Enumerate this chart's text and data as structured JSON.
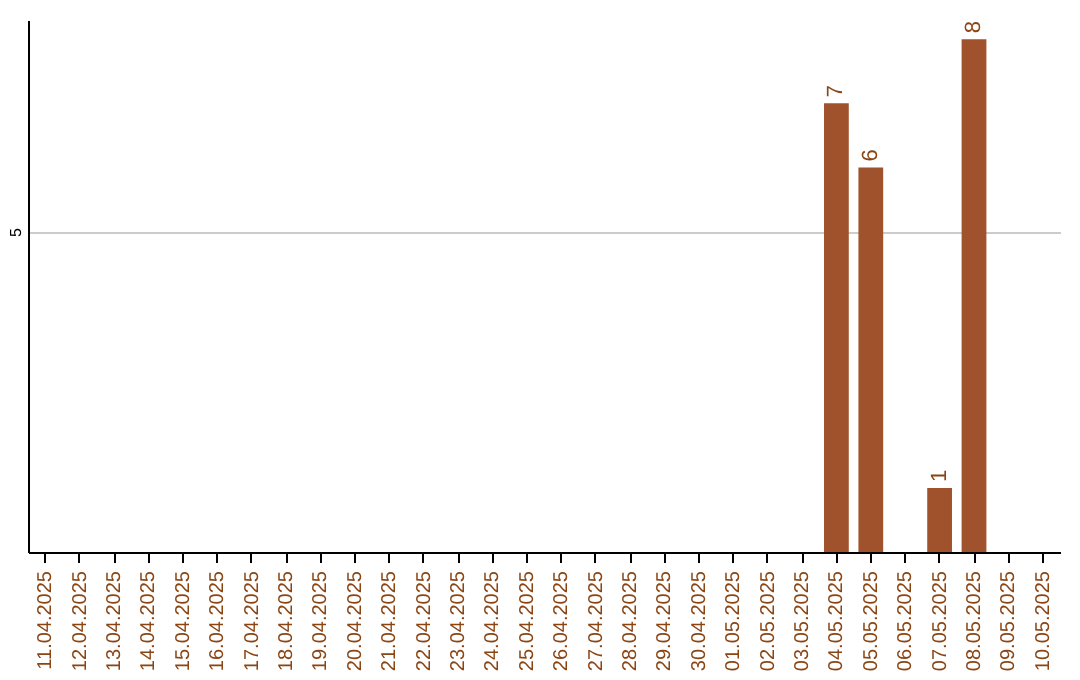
{
  "chart_data": {
    "type": "bar",
    "categories": [
      "11.04.2025",
      "12.04.2025",
      "13.04.2025",
      "14.04.2025",
      "15.04.2025",
      "16.04.2025",
      "17.04.2025",
      "18.04.2025",
      "19.04.2025",
      "20.04.2025",
      "21.04.2025",
      "22.04.2025",
      "23.04.2025",
      "24.04.2025",
      "25.04.2025",
      "26.04.2025",
      "27.04.2025",
      "28.04.2025",
      "29.04.2025",
      "30.04.2025",
      "01.05.2025",
      "02.05.2025",
      "03.05.2025",
      "04.05.2025",
      "05.05.2025",
      "06.05.2025",
      "07.05.2025",
      "08.05.2025",
      "09.05.2025",
      "10.05.2025"
    ],
    "values": [
      null,
      null,
      null,
      null,
      null,
      null,
      null,
      null,
      null,
      null,
      null,
      null,
      null,
      null,
      null,
      null,
      null,
      null,
      null,
      null,
      null,
      null,
      null,
      7,
      6,
      null,
      1,
      8,
      null,
      null
    ],
    "color": "#a0522d",
    "ylim": [
      0,
      8.3
    ],
    "yticks": [
      5
    ],
    "grid": "y",
    "data_labels": true
  }
}
